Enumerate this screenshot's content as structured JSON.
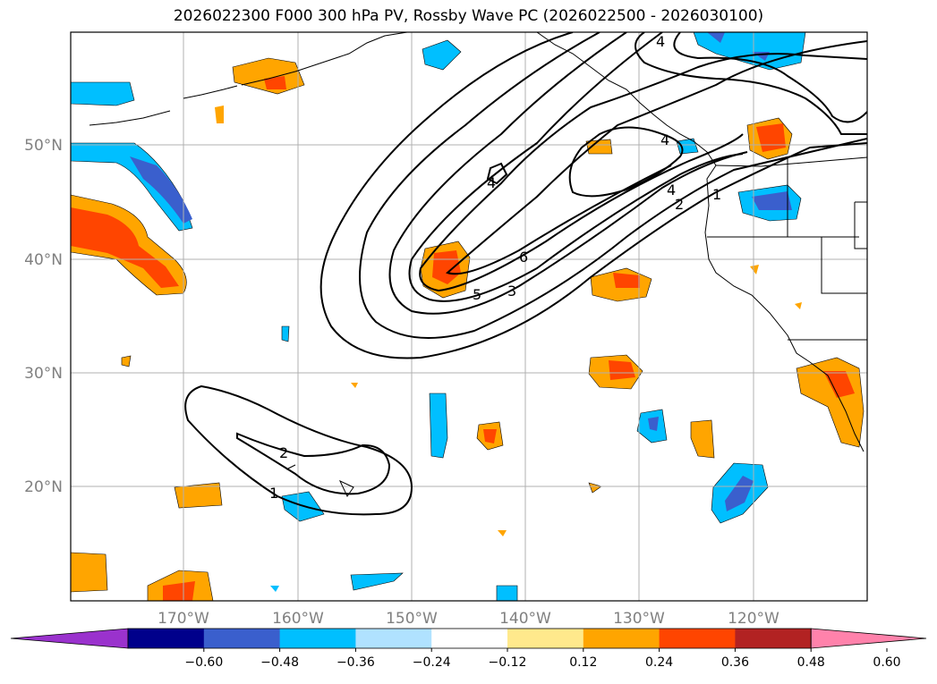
{
  "title": "2026022300 F000 300 hPa PV, Rossby Wave PC (2026022500 - 2026030100)",
  "latitude_labels": [
    "50°N",
    "40°N",
    "30°N",
    "20°N"
  ],
  "longitude_labels": [
    "170°W",
    "160°W",
    "150°W",
    "140°W",
    "130°W",
    "120°W"
  ],
  "pv_contour_labels": [
    "4",
    "4",
    "4",
    "4",
    "6",
    "5",
    "3",
    "2",
    "1",
    "2",
    "1"
  ],
  "colorbar": {
    "ticks": [
      "−0.60",
      "−0.48",
      "−0.36",
      "−0.24",
      "−0.12",
      "0.12",
      "0.24",
      "0.36",
      "0.48",
      "0.60"
    ],
    "colors": [
      "#9a32cd",
      "#00008b",
      "#3a5fcd",
      "#00bfff",
      "#b0e2ff",
      "#ffffff",
      "#ffe98c",
      "#ffa500",
      "#ff4500",
      "#b22222",
      "#ff82ab"
    ]
  }
}
